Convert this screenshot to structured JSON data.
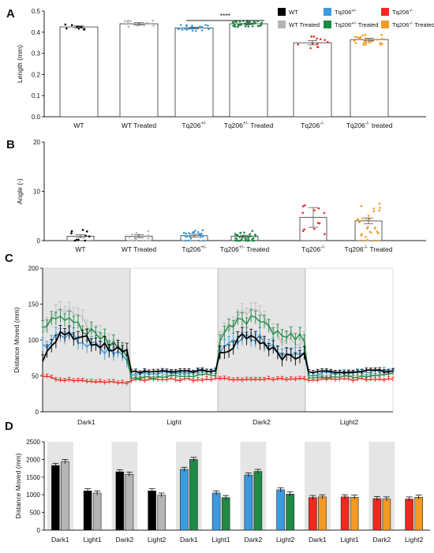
{
  "colors": {
    "wt": "#000000",
    "wt_treated": "#b5b5b5",
    "het": "#3b9ae0",
    "het_treated": "#1f8a46",
    "hom": "#ee2a1f",
    "hom_treated": "#f39a25",
    "shade": "#e5e5e5"
  },
  "legend": [
    {
      "key": "wt",
      "text": "WT",
      "sup": "",
      "suffix": ""
    },
    {
      "key": "het",
      "text": "Tq206",
      "sup": "+/-",
      "suffix": ""
    },
    {
      "key": "hom",
      "text": "Tq206",
      "sup": "-/-",
      "suffix": ""
    },
    {
      "key": "wt_treated",
      "text": "WT Treated",
      "sup": "",
      "suffix": ""
    },
    {
      "key": "het_treated",
      "text": "Tq206",
      "sup": "+/-",
      "suffix": " Treated"
    },
    {
      "key": "hom_treated",
      "text": "Tq206",
      "sup": "-/-",
      "suffix": " Treated"
    }
  ],
  "chart_data": [
    {
      "panel": "A",
      "type": "bar",
      "ylabel": "Length (mm)",
      "ylim": [
        0,
        0.5
      ],
      "yticks": [
        "0.0",
        "0.1",
        "0.2",
        "0.3",
        "0.4",
        "0.5"
      ],
      "categories": [
        {
          "text": "WT",
          "sup": "",
          "suffix": ""
        },
        {
          "text": "WT Treated",
          "sup": "",
          "suffix": ""
        },
        {
          "text": "Tq206",
          "sup": "+/-",
          "suffix": ""
        },
        {
          "text": "Tq206",
          "sup": "+/-",
          "suffix": " Treated"
        },
        {
          "text": "Tq206",
          "sup": "-/-",
          "suffix": ""
        },
        {
          "text": "Tq206",
          "sup": "-/-",
          "suffix": " treated"
        }
      ],
      "series_keys": [
        "wt",
        "wt_treated",
        "het",
        "het_treated",
        "hom",
        "hom_treated"
      ],
      "values": [
        0.425,
        0.44,
        0.42,
        0.44,
        0.35,
        0.365
      ],
      "errors": [
        0.005,
        0.005,
        0.004,
        0.003,
        0.01,
        0.006
      ],
      "significance": {
        "between": [
          2,
          3
        ],
        "label": "****"
      }
    },
    {
      "panel": "B",
      "type": "bar",
      "ylabel": "Angle (◦)",
      "ylim": [
        0,
        20
      ],
      "yticks": [
        "0",
        "10",
        "20"
      ],
      "categories": [
        {
          "text": "WT",
          "sup": "",
          "suffix": ""
        },
        {
          "text": "WT Treated",
          "sup": "",
          "suffix": ""
        },
        {
          "text": "Tq206",
          "sup": "+/-",
          "suffix": ""
        },
        {
          "text": "Tq206",
          "sup": "+/-",
          "suffix": " Treated"
        },
        {
          "text": "Tq206",
          "sup": "-/-",
          "suffix": ""
        },
        {
          "text": "Tq206",
          "sup": "-/-",
          "suffix": " Treated"
        }
      ],
      "series_keys": [
        "wt",
        "wt_treated",
        "het",
        "het_treated",
        "hom",
        "hom_treated"
      ],
      "values": [
        0.9,
        0.9,
        1.0,
        0.9,
        4.7,
        4.0
      ],
      "errors": [
        0.3,
        0.3,
        0.3,
        0.2,
        2.0,
        0.6
      ]
    },
    {
      "panel": "C",
      "type": "line",
      "ylabel": "Distance Moved (mm)",
      "ylim": [
        0,
        200
      ],
      "yticks": [
        "0",
        "50",
        "100",
        "150",
        "200"
      ],
      "x_points": 80,
      "phases": [
        {
          "label": "Dark1",
          "start": 0,
          "end": 20,
          "shaded": true
        },
        {
          "label": "Light",
          "start": 20,
          "end": 40,
          "shaded": false
        },
        {
          "label": "Dark2",
          "start": 40,
          "end": 60,
          "shaded": true
        },
        {
          "label": "Light2",
          "start": 60,
          "end": 80,
          "shaded": false
        }
      ],
      "series": [
        {
          "key": "wt_treated",
          "dark": [
            110,
            150,
            120,
            80
          ],
          "light": [
            50,
            54
          ]
        },
        {
          "key": "hom",
          "dark": [
            50,
            45,
            48,
            40
          ],
          "light": [
            45,
            45
          ]
        },
        {
          "key": "het",
          "dark": [
            90,
            110,
            100,
            75
          ],
          "light": [
            52,
            58
          ]
        },
        {
          "key": "het_treated",
          "dark": [
            118,
            135,
            105,
            82
          ],
          "light": [
            46,
            52
          ]
        },
        {
          "key": "wt",
          "dark": [
            75,
            112,
            95,
            80
          ],
          "light": [
            55,
            57
          ]
        }
      ]
    },
    {
      "panel": "D",
      "type": "bar",
      "ylabel": "Distance Moved (mm)",
      "ylim": [
        0,
        2500
      ],
      "yticks": [
        "0",
        "500",
        "1000",
        "1500",
        "2000",
        "2500"
      ],
      "phase_labels": [
        "Dark1",
        "Light1",
        "Dark2",
        "Light2",
        "Dark1",
        "Light1",
        "Dark2",
        "Light2",
        "Dark1",
        "Light1",
        "Dark2",
        "Light2"
      ],
      "groups": [
        {
          "keys": [
            "wt",
            "wt_treated"
          ],
          "values": [
            [
              1830,
              1940
            ],
            [
              1110,
              1050
            ],
            [
              1650,
              1580
            ],
            [
              1110,
              990
            ]
          ]
        },
        {
          "keys": [
            "het",
            "het_treated"
          ],
          "values": [
            [
              1720,
              2000
            ],
            [
              1050,
              920
            ],
            [
              1560,
              1660
            ],
            [
              1140,
              1020
            ]
          ]
        },
        {
          "keys": [
            "hom",
            "hom_treated"
          ],
          "values": [
            [
              920,
              940
            ],
            [
              940,
              930
            ],
            [
              890,
              880
            ],
            [
              880,
              930
            ]
          ]
        }
      ],
      "error": 60
    }
  ]
}
